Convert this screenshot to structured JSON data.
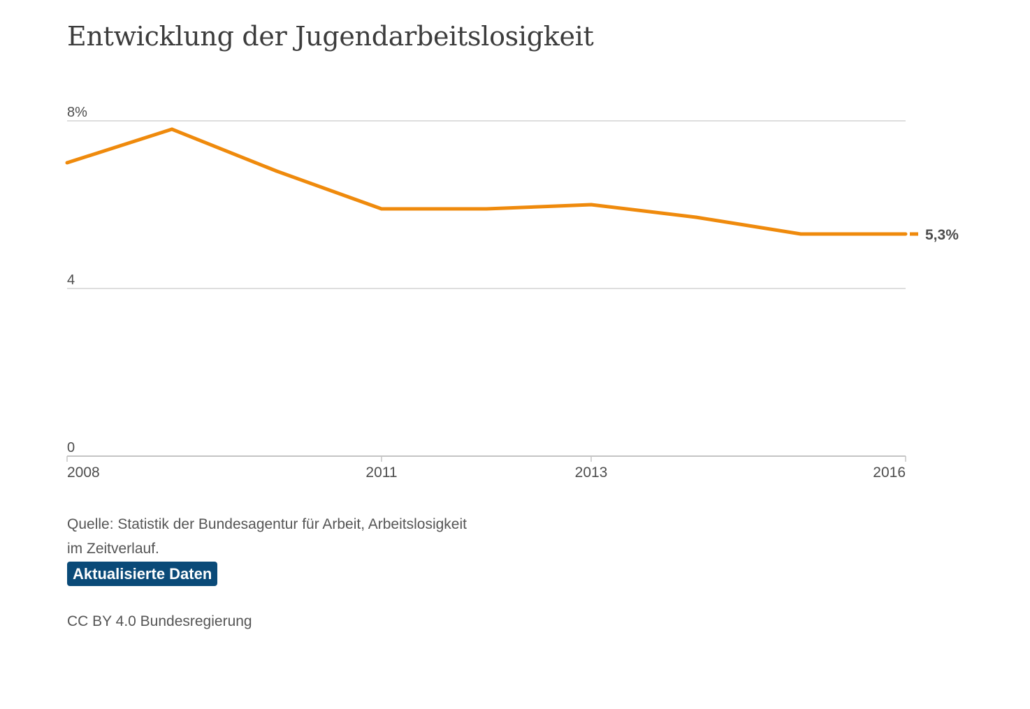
{
  "colors": {
    "line": "#ef8a0c",
    "grid": "#d3d3d3",
    "axis": "#c4c4c4",
    "text": "#4d4d4d",
    "badge_bg": "#0a4a78",
    "badge_text": "#ffffff"
  },
  "header": {
    "title": "Entwicklung der Jugendarbeitslosigkeit"
  },
  "chart_data": {
    "type": "line",
    "title": "Entwicklung der Jugendarbeitslosigkeit",
    "xlabel": "",
    "ylabel": "",
    "x": [
      2008,
      2009,
      2010,
      2011,
      2012,
      2013,
      2014,
      2015,
      2016
    ],
    "series": [
      {
        "values": [
          7.0,
          7.8,
          6.8,
          5.9,
          5.9,
          6.0,
          5.7,
          5.3,
          5.3
        ]
      }
    ],
    "xlim": [
      2008,
      2016
    ],
    "ylim": [
      0,
      8
    ],
    "x_ticks": [
      2008,
      2011,
      2013,
      2016
    ],
    "y_ticks": [
      0,
      4,
      8
    ],
    "y_tick_labels": [
      "0",
      "4",
      "8%"
    ],
    "end_label": "5,3%",
    "grid": true,
    "legend": "none"
  },
  "footer": {
    "source_line1": "Quelle: Statistik der Bundesagentur für Arbeit, Arbeitslosigkeit",
    "source_line2": "im Zeitverlauf.",
    "button_label": "Aktualisierte Daten",
    "license": "CC BY 4.0 Bundesregierung"
  }
}
